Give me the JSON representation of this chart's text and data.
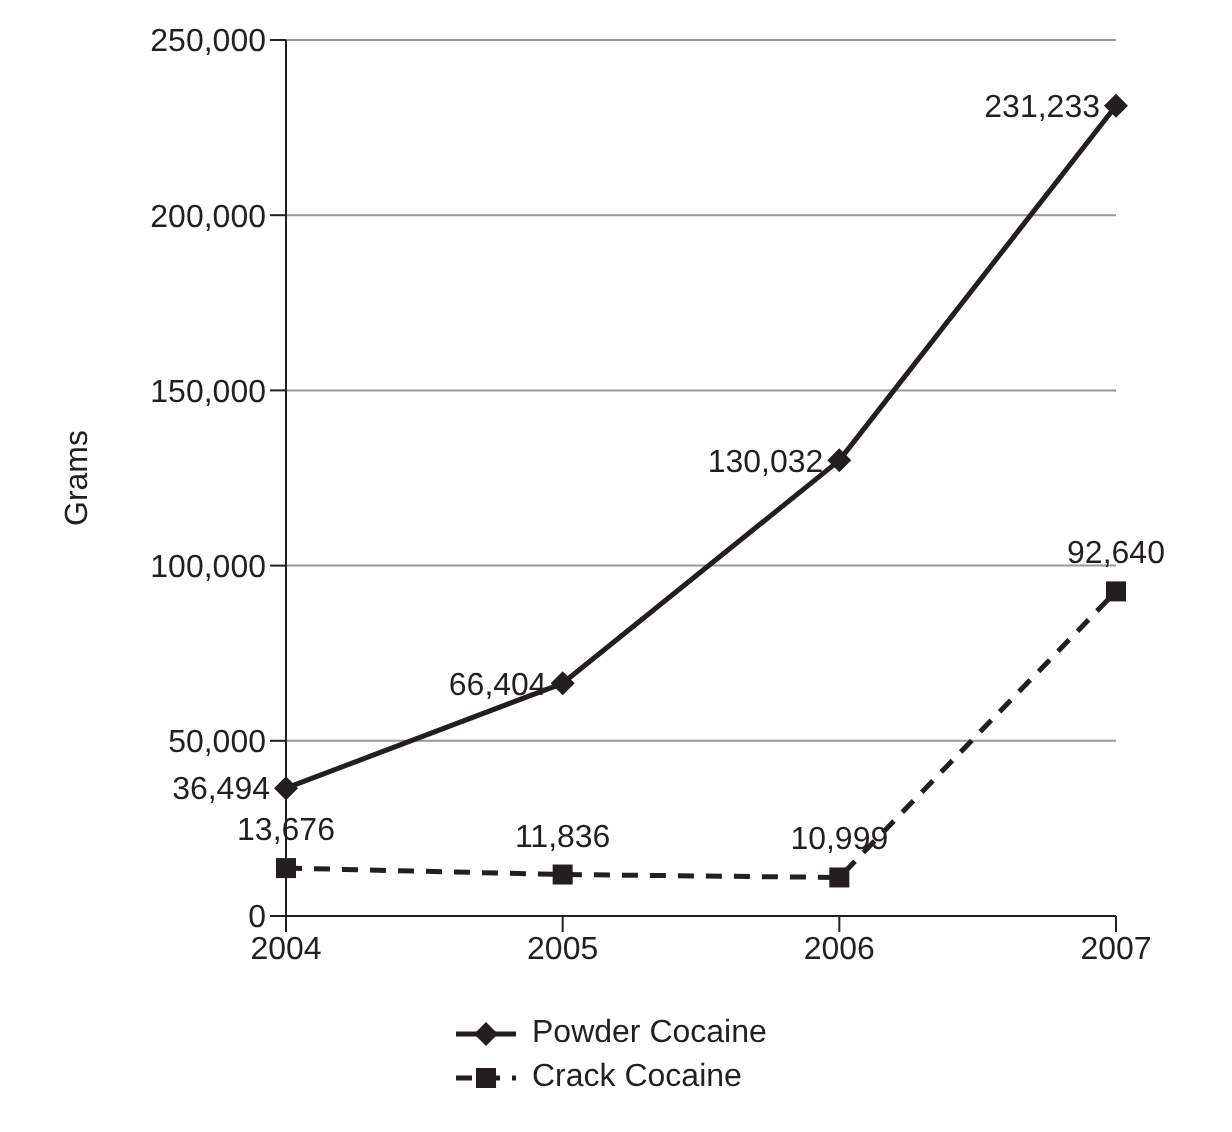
{
  "chart_data": {
    "type": "line",
    "ylabel": "Grams",
    "categories": [
      "2004",
      "2005",
      "2006",
      "2007"
    ],
    "series": [
      {
        "name": "Powder Cocaine",
        "color": "#231f20",
        "values": [
          36494,
          66404,
          130032,
          231233
        ],
        "value_labels": [
          "36,494",
          "66,404",
          "130,032",
          "231,233"
        ],
        "marker": "diamond",
        "line_style": "solid"
      },
      {
        "name": "Crack Cocaine",
        "color": "#231f20",
        "values": [
          13676,
          11836,
          10999,
          92640
        ],
        "value_labels": [
          "13,676",
          "11,836",
          "10,999",
          "92,640"
        ],
        "marker": "square",
        "line_style": "dashed"
      }
    ],
    "ylim": [
      0,
      250000
    ],
    "yticks": [
      {
        "value": 0,
        "label": "0"
      },
      {
        "value": 50000,
        "label": "50,000"
      },
      {
        "value": 100000,
        "label": "100,000"
      },
      {
        "value": 150000,
        "label": "150,000"
      },
      {
        "value": 200000,
        "label": "200,000"
      },
      {
        "value": 250000,
        "label": "250,000"
      }
    ],
    "grid": "y",
    "legend": "bottom"
  }
}
